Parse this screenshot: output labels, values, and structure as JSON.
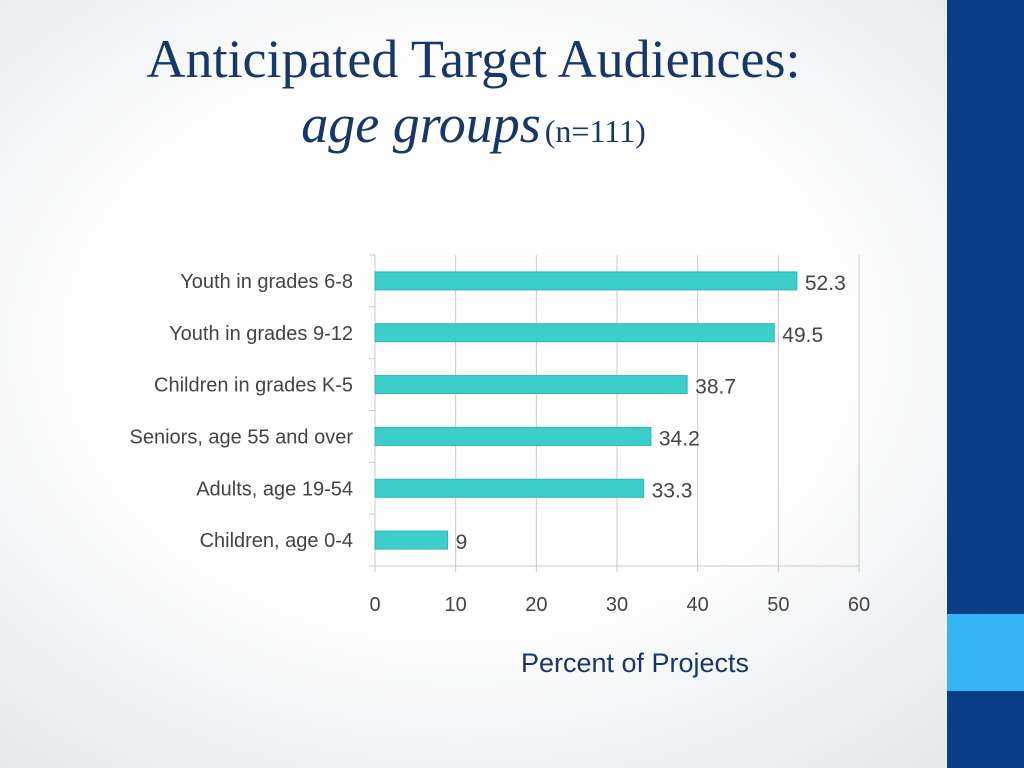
{
  "title": {
    "line1": "Anticipated Target Audiences:",
    "italic": "age groups",
    "n": "(n=111)"
  },
  "colors": {
    "bar": "#3cceca",
    "bar_stroke": "#2fb5b1",
    "title": "#17376b",
    "label": "#444444",
    "grid": "#c9c9c9",
    "side_bar": "#0a3e86",
    "side_accent": "#34b4f5"
  },
  "chart_data": {
    "type": "bar",
    "orientation": "horizontal",
    "categories": [
      "Youth in grades 6-8",
      "Youth in grades 9-12",
      "Children in grades K-5",
      "Seniors, age 55 and over",
      "Adults, age 19-54",
      "Children, age 0-4"
    ],
    "values": [
      52.3,
      49.5,
      38.7,
      34.2,
      33.3,
      9
    ],
    "value_labels": [
      "52.3",
      "49.5",
      "38.7",
      "34.2",
      "33.3",
      "9"
    ],
    "xlabel": "Percent of Projects",
    "xlim": [
      0,
      60
    ],
    "xticks": [
      "0",
      "10",
      "20",
      "30",
      "40",
      "50",
      "60"
    ],
    "grid": true
  }
}
